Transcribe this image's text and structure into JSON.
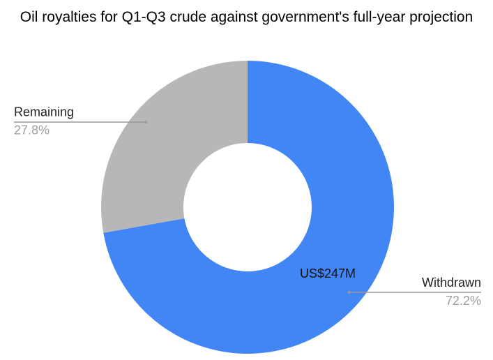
{
  "chart_data": {
    "type": "donut",
    "title": "Oil royalties for Q1-Q3 crude against government's full-year projection",
    "categories": [
      "Withdrawn",
      "Remaining"
    ],
    "values": [
      72.2,
      27.8
    ],
    "value_labels": [
      "72.2%",
      "27.8%"
    ],
    "colors": [
      "#4285f4",
      "#b7b7b7"
    ],
    "annotation": "US$247M"
  }
}
